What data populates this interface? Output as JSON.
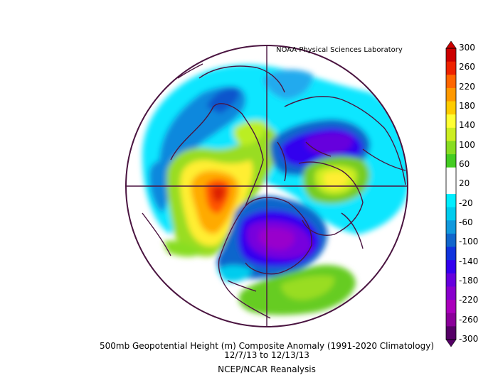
{
  "credit": "NOAA Physical Sciences Laboratory",
  "title": "500mb Geopotential Height (m) Composite Anomaly (1991-2020 Climatology)",
  "date_range": "12/7/13   to 12/13/13",
  "source": "NCEP/NCAR Reanalysis",
  "colorbar": {
    "labels": [
      "300",
      "260",
      "220",
      "180",
      "140",
      "100",
      "60",
      "20",
      "-20",
      "-60",
      "-100",
      "-140",
      "-180",
      "-220",
      "-260",
      "-300"
    ],
    "colors": [
      "#cc0000",
      "#ee2200",
      "#ff6600",
      "#ff9900",
      "#ffcc00",
      "#ffff33",
      "#ccee22",
      "#88dd22",
      "#44cc22",
      "#ffffff",
      "#ffffff",
      "#00eeff",
      "#00ccee",
      "#1199dd",
      "#1166cc",
      "#1133dd",
      "#3300ee",
      "#6600dd",
      "#8800cc",
      "#aa00bb",
      "#8a0099",
      "#550066"
    ]
  }
}
